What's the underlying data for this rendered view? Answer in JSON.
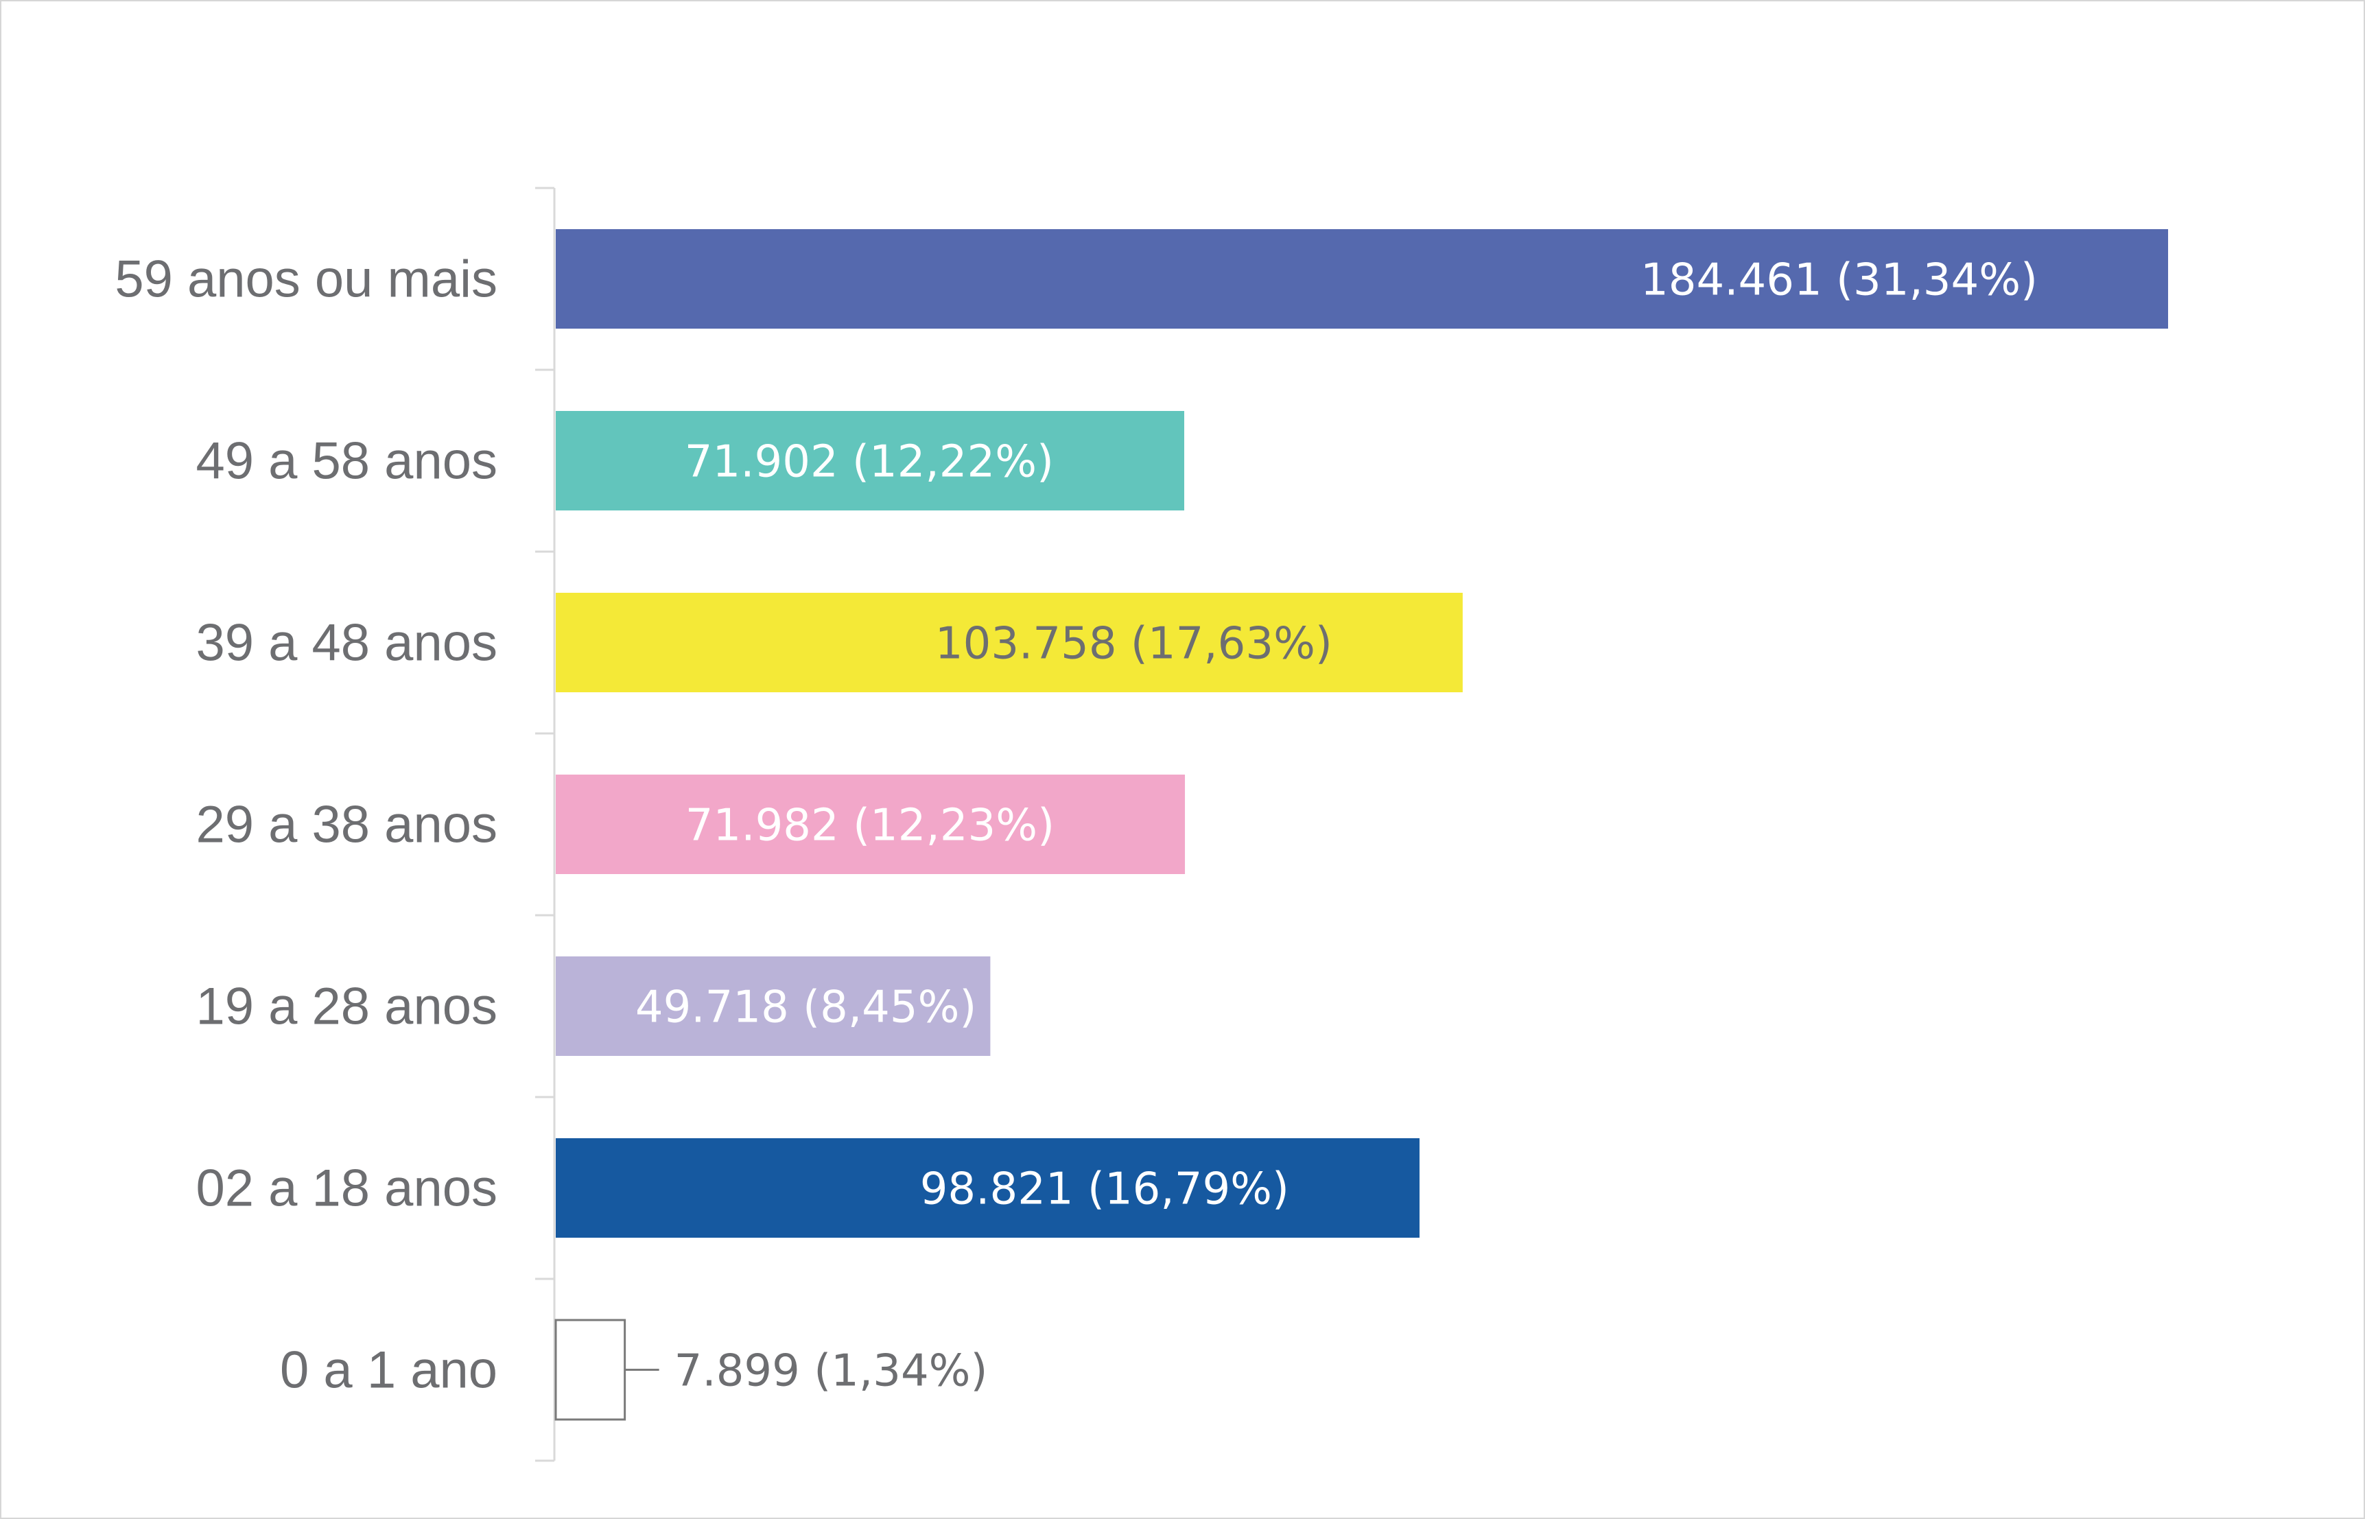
{
  "chart_data": {
    "type": "bar",
    "orientation": "horizontal",
    "categories": [
      "59 anos ou mais",
      "49 a 58 anos",
      "39 a 48 anos",
      "29 a 38 anos",
      "19 a 28 anos",
      "02 a 18 anos",
      "0 a 1 ano"
    ],
    "values": [
      184461,
      71902,
      103758,
      71982,
      49718,
      98821,
      7899
    ],
    "percentages": [
      "31,34%",
      "12,22%",
      "17,63%",
      "12,23%",
      "8,45%",
      "16,79%",
      "1,34%"
    ],
    "value_labels": [
      "184.461  (31,34%)",
      "71.902  (12,22%)",
      "103.758  (17,63%)",
      "71.982  (12,23%)",
      "49.718  (8,45%)",
      "98.821  (16,79%)",
      "7.899 (1,34%)"
    ],
    "colors": [
      "#5569ae",
      "#62c5bc",
      "#f4e937",
      "#f2a7c9",
      "#bab3d8",
      "#1659a0",
      "#ffffff"
    ],
    "label_colors": [
      "#ffffff",
      "#ffffff",
      "#6d6e71",
      "#ffffff",
      "#ffffff",
      "#ffffff",
      "#6d6e71"
    ],
    "title": "",
    "xlabel": "",
    "ylabel": "",
    "grid": false,
    "legend": "none"
  }
}
